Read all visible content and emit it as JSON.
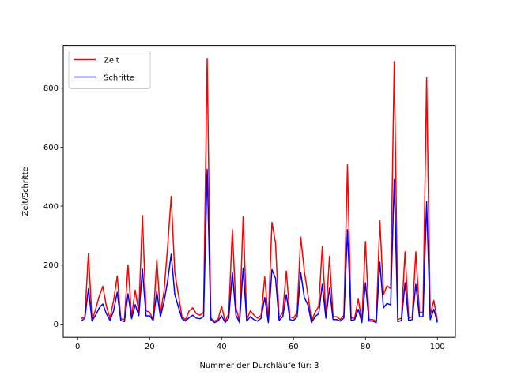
{
  "chart_data": {
    "type": "line",
    "title": "",
    "xlabel": "Nummer der Durchläufe für: 3",
    "ylabel": "Zeit/Schritte",
    "xlim": [
      -4,
      105
    ],
    "ylim": [
      -45,
      945
    ],
    "xticks": [
      0,
      20,
      40,
      60,
      80,
      100
    ],
    "yticks": [
      0,
      200,
      400,
      600,
      800
    ],
    "grid": false,
    "legend_position": "upper-left",
    "x": [
      1,
      2,
      3,
      4,
      5,
      6,
      7,
      8,
      9,
      10,
      11,
      12,
      13,
      14,
      15,
      16,
      17,
      18,
      19,
      20,
      21,
      22,
      23,
      24,
      25,
      26,
      27,
      28,
      29,
      30,
      31,
      32,
      33,
      34,
      35,
      36,
      37,
      38,
      39,
      40,
      41,
      42,
      43,
      44,
      45,
      46,
      47,
      48,
      49,
      50,
      51,
      52,
      53,
      54,
      55,
      56,
      57,
      58,
      59,
      60,
      61,
      62,
      63,
      64,
      65,
      66,
      67,
      68,
      69,
      70,
      71,
      72,
      73,
      74,
      75,
      76,
      77,
      78,
      79,
      80,
      81,
      82,
      83,
      84,
      85,
      86,
      87,
      88,
      89,
      90,
      91,
      92,
      93,
      94,
      95,
      96,
      97,
      98,
      99,
      100
    ],
    "series": [
      {
        "name": "Zeit",
        "color": "#ff0000",
        "values": [
          18,
          25,
          240,
          12,
          50,
          95,
          128,
          60,
          20,
          80,
          163,
          18,
          15,
          200,
          25,
          115,
          40,
          368,
          45,
          40,
          15,
          218,
          35,
          110,
          260,
          433,
          175,
          100,
          25,
          15,
          45,
          55,
          35,
          30,
          40,
          900,
          20,
          10,
          15,
          60,
          10,
          35,
          320,
          55,
          10,
          365,
          15,
          45,
          30,
          20,
          30,
          160,
          15,
          345,
          275,
          20,
          40,
          180,
          25,
          20,
          40,
          295,
          180,
          100,
          10,
          40,
          60,
          263,
          25,
          230,
          25,
          25,
          15,
          30,
          540,
          20,
          20,
          85,
          10,
          280,
          15,
          15,
          10,
          350,
          100,
          130,
          120,
          890,
          15,
          20,
          245,
          20,
          25,
          245,
          40,
          40,
          835,
          30,
          80,
          10
        ]
      },
      {
        "name": "Schritte",
        "color": "#0000ff",
        "values": [
          10,
          20,
          120,
          10,
          30,
          55,
          68,
          35,
          12,
          45,
          108,
          12,
          8,
          103,
          18,
          66,
          28,
          187,
          28,
          28,
          12,
          110,
          25,
          75,
          145,
          237,
          100,
          58,
          18,
          10,
          22,
          30,
          20,
          18,
          25,
          525,
          15,
          5,
          10,
          28,
          5,
          20,
          175,
          30,
          5,
          190,
          10,
          25,
          15,
          10,
          20,
          90,
          5,
          185,
          155,
          12,
          25,
          100,
          15,
          12,
          25,
          175,
          90,
          65,
          5,
          25,
          35,
          135,
          20,
          122,
          15,
          15,
          10,
          20,
          320,
          12,
          15,
          50,
          5,
          140,
          10,
          10,
          5,
          210,
          55,
          70,
          65,
          490,
          8,
          12,
          140,
          12,
          15,
          135,
          25,
          25,
          415,
          15,
          50,
          5
        ]
      }
    ]
  }
}
